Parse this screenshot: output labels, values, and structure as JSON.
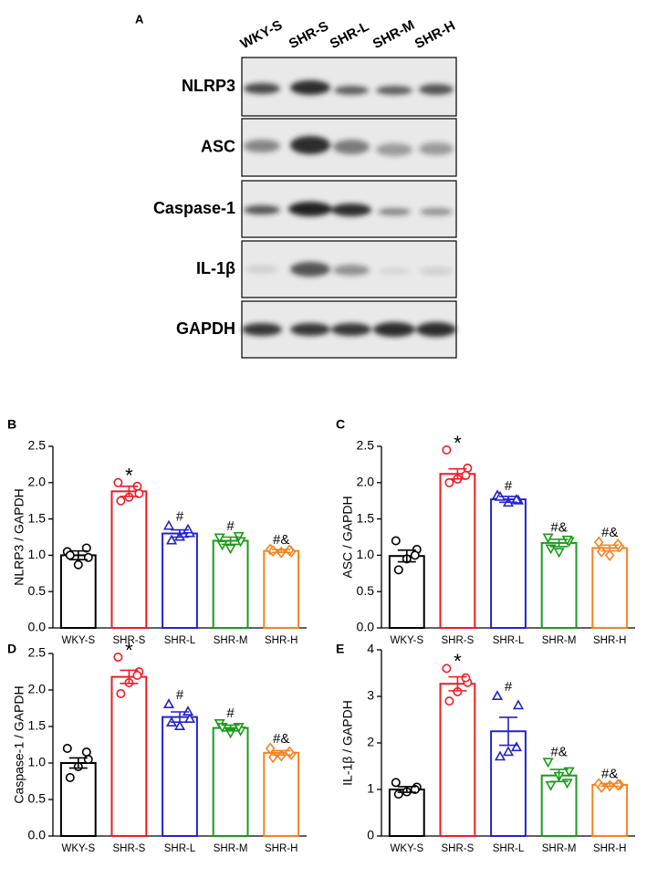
{
  "blot": {
    "panel": "A",
    "lanes": [
      "WKY-S",
      "SHR-S",
      "SHR-L",
      "SHR-M",
      "SHR-H"
    ],
    "rows": [
      "NLRP3",
      "ASC",
      "Caspase-1",
      "IL-1β",
      "GAPDH"
    ]
  },
  "chart_data": [
    {
      "type": "bar",
      "panel": "B",
      "ylabel": "NLRP3 / GAPDH",
      "categories": [
        "WKY-S",
        "SHR-S",
        "SHR-L",
        "SHR-M",
        "SHR-H"
      ],
      "values": [
        1.0,
        1.88,
        1.3,
        1.2,
        1.06
      ],
      "errors": [
        0.06,
        0.07,
        0.05,
        0.05,
        0.02
      ],
      "points": [
        [
          1.05,
          0.97,
          0.87,
          1.0,
          1.1
        ],
        [
          2.0,
          1.85,
          1.8,
          1.75,
          1.95
        ],
        [
          1.4,
          1.3,
          1.25,
          1.2,
          1.35
        ],
        [
          1.25,
          1.2,
          1.1,
          1.15,
          1.27
        ],
        [
          1.08,
          1.05,
          1.04,
          1.06,
          1.07
        ]
      ],
      "annotations": [
        null,
        "*",
        "#",
        "#",
        "#&"
      ],
      "colors": [
        "#000000",
        "#ee1c25",
        "#2424c8",
        "#1a9a1a",
        "#f58220"
      ],
      "markers": [
        "circle",
        "circle",
        "triangle-up",
        "triangle-down",
        "diamond"
      ],
      "ylim": [
        0,
        2.5
      ],
      "yticks": [
        {
          "value": 0,
          "label": "0.0"
        },
        0.5,
        {
          "value": 1,
          "label": "1.0"
        },
        1.5,
        {
          "value": 2,
          "label": "2.0"
        },
        2.5
      ]
    },
    {
      "type": "bar",
      "panel": "C",
      "ylabel": "ASC / GAPDH",
      "categories": [
        "WKY-S",
        "SHR-S",
        "SHR-L",
        "SHR-M",
        "SHR-H"
      ],
      "values": [
        0.99,
        2.12,
        1.77,
        1.17,
        1.1
      ],
      "errors": [
        0.08,
        0.07,
        0.04,
        0.05,
        0.04
      ],
      "points": [
        [
          1.2,
          1.08,
          0.95,
          0.8,
          1.0
        ],
        [
          2.45,
          2.2,
          2.05,
          2.0,
          2.1
        ],
        [
          1.82,
          1.75,
          1.72,
          1.8,
          1.76
        ],
        [
          1.25,
          1.2,
          1.05,
          1.1,
          1.22
        ],
        [
          1.18,
          1.12,
          1.0,
          1.05,
          1.15
        ]
      ],
      "annotations": [
        null,
        "*",
        "#",
        "#&",
        "#&"
      ],
      "colors": [
        "#000000",
        "#ee1c25",
        "#2424c8",
        "#1a9a1a",
        "#f58220"
      ],
      "markers": [
        "circle",
        "circle",
        "triangle-up",
        "triangle-down",
        "diamond"
      ],
      "ylim": [
        0,
        2.5
      ],
      "yticks": [
        {
          "value": 0,
          "label": "0.0"
        },
        0.5,
        {
          "value": 1,
          "label": "1.0"
        },
        1.5,
        {
          "value": 2,
          "label": "2.0"
        },
        2.5
      ]
    },
    {
      "type": "bar",
      "panel": "D",
      "ylabel": "Caspase-1 / GAPDH",
      "categories": [
        "WKY-S",
        "SHR-S",
        "SHR-L",
        "SHR-M",
        "SHR-H"
      ],
      "values": [
        1.0,
        2.18,
        1.63,
        1.48,
        1.14
      ],
      "errors": [
        0.07,
        0.09,
        0.07,
        0.04,
        0.03
      ],
      "points": [
        [
          1.2,
          1.05,
          0.95,
          0.8,
          1.15
        ],
        [
          2.45,
          2.25,
          2.1,
          1.95,
          2.2
        ],
        [
          1.8,
          1.6,
          1.5,
          1.55,
          1.7
        ],
        [
          1.55,
          1.45,
          1.42,
          1.5,
          1.5
        ],
        [
          1.2,
          1.12,
          1.1,
          1.08,
          1.15
        ]
      ],
      "annotations": [
        null,
        "*",
        "#",
        "#",
        "#&"
      ],
      "colors": [
        "#000000",
        "#ee1c25",
        "#2424c8",
        "#1a9a1a",
        "#f58220"
      ],
      "markers": [
        "circle",
        "circle",
        "triangle-up",
        "triangle-down",
        "diamond"
      ],
      "ylim": [
        0,
        2.5
      ],
      "yticks": [
        {
          "value": 0,
          "label": "0.0"
        },
        0.5,
        {
          "value": 1,
          "label": "1.0"
        },
        1.5,
        {
          "value": 2,
          "label": "2.0"
        },
        2.5
      ]
    },
    {
      "type": "bar",
      "panel": "E",
      "ylabel": "IL-1β / GAPDH",
      "categories": [
        "WKY-S",
        "SHR-S",
        "SHR-L",
        "SHR-M",
        "SHR-H"
      ],
      "values": [
        1.0,
        3.27,
        2.25,
        1.3,
        1.1
      ],
      "errors": [
        0.06,
        0.15,
        0.3,
        0.13,
        0.03
      ],
      "points": [
        [
          1.15,
          1.05,
          0.95,
          0.9,
          1.0
        ],
        [
          3.6,
          3.3,
          3.1,
          2.9,
          3.4
        ],
        [
          3.0,
          2.8,
          1.8,
          1.7,
          1.9
        ],
        [
          1.6,
          1.4,
          1.3,
          1.1,
          1.15
        ],
        [
          1.12,
          1.1,
          1.08,
          1.05,
          1.1
        ]
      ],
      "annotations": [
        null,
        "*",
        "#",
        "#&",
        "#&"
      ],
      "colors": [
        "#000000",
        "#ee1c25",
        "#2424c8",
        "#1a9a1a",
        "#f58220"
      ],
      "markers": [
        "circle",
        "circle",
        "triangle-up",
        "triangle-down",
        "diamond"
      ],
      "ylim": [
        0,
        4
      ],
      "yticks": [
        0,
        1,
        2,
        3,
        4
      ]
    }
  ]
}
